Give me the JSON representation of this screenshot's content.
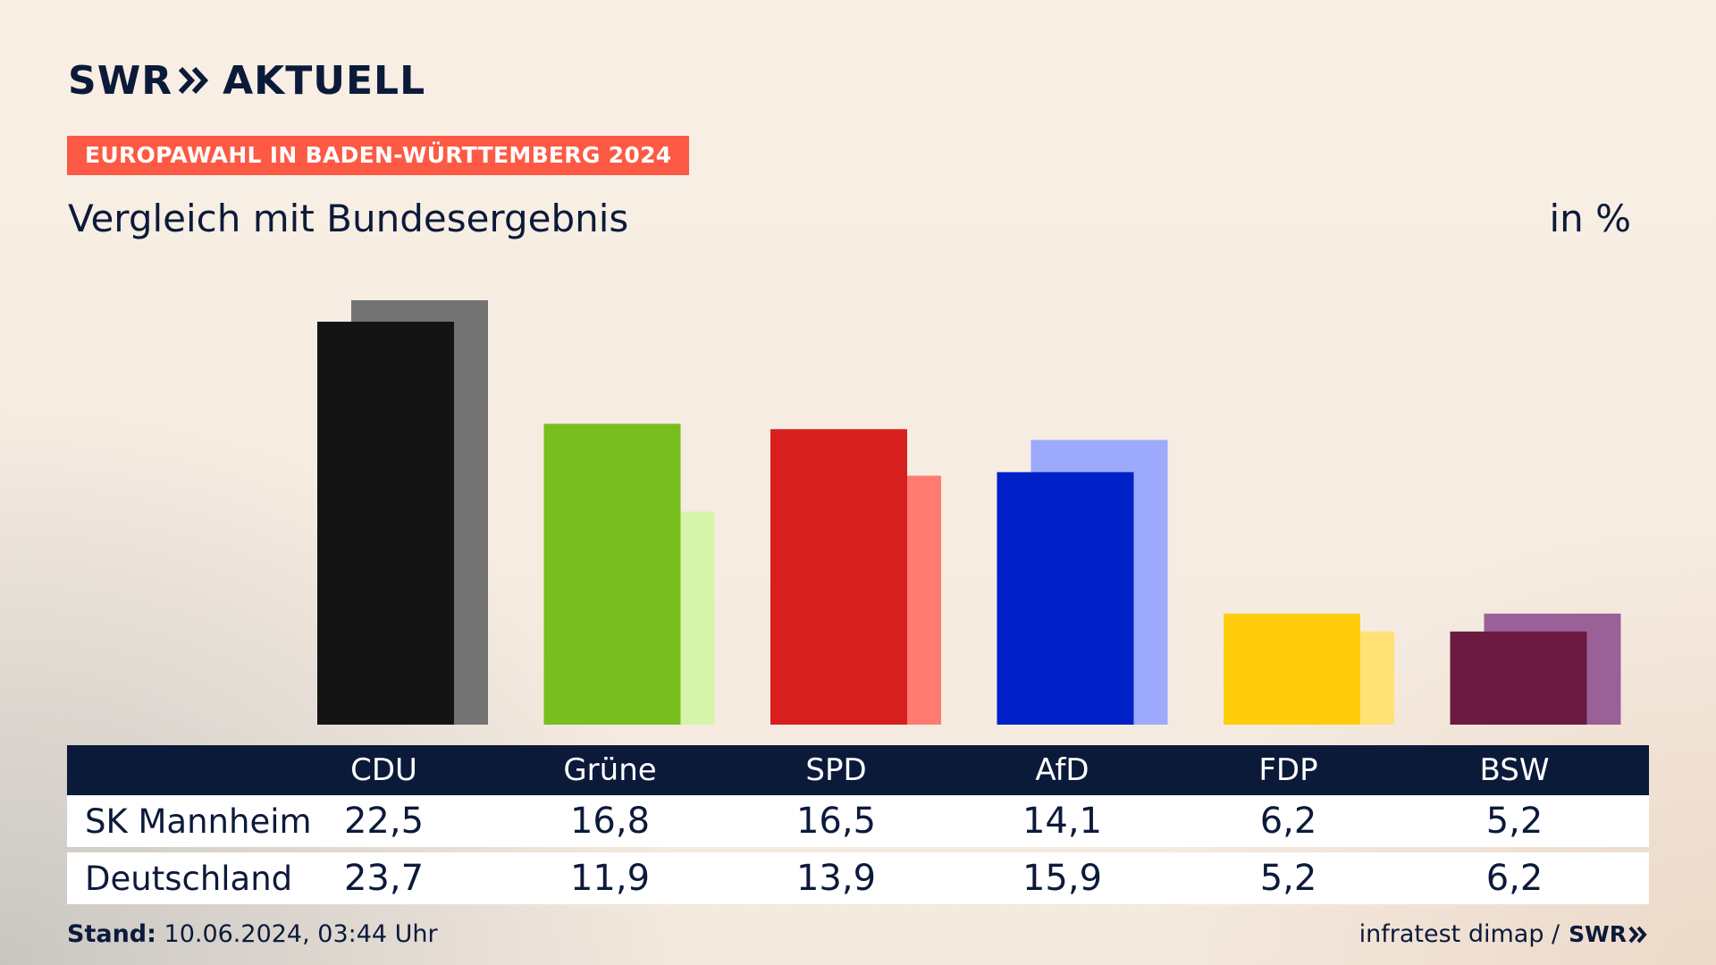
{
  "logo": {
    "left": "SWR",
    "right": "AKTUELL",
    "color": "#0c1a3a"
  },
  "badge": {
    "text": "EUROPAWAHL IN BADEN-WÜRTTEMBERG 2024",
    "color": "#fc5a44"
  },
  "subtitle": "Vergleich mit Bundesergebnis",
  "unit_label": "in %",
  "table": {
    "headers": [
      "CDU",
      "Grüne",
      "SPD",
      "AfD",
      "FDP",
      "BSW"
    ],
    "rows": [
      {
        "label": "SK Mannheim",
        "values": [
          "22,5",
          "16,8",
          "16,5",
          "14,1",
          "6,2",
          "5,2"
        ]
      },
      {
        "label": "Deutschland",
        "values": [
          "23,7",
          "11,9",
          "13,9",
          "15,9",
          "5,2",
          "6,2"
        ]
      }
    ]
  },
  "footer": {
    "stand_label": "Stand:",
    "stand_value": "10.06.2024, 03:44 Uhr",
    "source": "infratest dimap /",
    "source_logo": "SWR"
  },
  "chart_data": {
    "type": "bar",
    "title": "Vergleich mit Bundesergebnis",
    "unit": "in %",
    "categories": [
      "CDU",
      "Grüne",
      "SPD",
      "AfD",
      "FDP",
      "BSW"
    ],
    "series": [
      {
        "name": "SK Mannheim",
        "values": [
          22.5,
          16.8,
          16.5,
          14.1,
          6.2,
          5.2
        ],
        "colors": [
          "#141414",
          "#78be1e",
          "#d71f1f",
          "#0021c8",
          "#ffcd0c",
          "#6b1a40"
        ]
      },
      {
        "name": "Deutschland",
        "values": [
          23.7,
          11.9,
          13.9,
          15.9,
          5.2,
          6.2
        ],
        "colors": [
          "#737373",
          "#d6f5aa",
          "#ff7a70",
          "#9daafc",
          "#ffe175",
          "#9a6198"
        ]
      }
    ],
    "ylim": [
      0,
      23.7
    ]
  }
}
